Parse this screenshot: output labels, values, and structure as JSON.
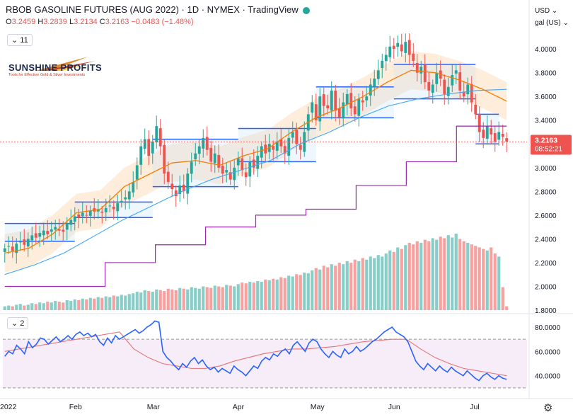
{
  "header": {
    "symbol": "RBOB GASOLINE FUTURES (AUG 2022)",
    "interval": "1D",
    "exchange": "NYMEX",
    "source": "TradingView",
    "sep": " · "
  },
  "ohlc": {
    "o_label": "O",
    "o": "3.2459",
    "h_label": "H",
    "h": "3.2839",
    "l_label": "L",
    "l": "3.2134",
    "c_label": "C",
    "c": "3.2163",
    "chg": "−0.0483 (−1.48%)"
  },
  "indicator_count_main": "11",
  "indicator_count_rsi": "2",
  "currency": "USD",
  "unit": "gal (US)",
  "logo": {
    "name": "SUNSHINE PROFITS",
    "tagline": "Tools for Effective Gold & Silver Investments"
  },
  "price_tag": {
    "value": "3.2163",
    "countdown": "08:52:21",
    "color": "#ef5350"
  },
  "colors": {
    "up": "#26a69a",
    "down": "#ef5350",
    "ma_fast": "#f57c00",
    "ma_slow": "#42a5f5",
    "vwap": "#9c27b0",
    "rsi": "#2962ff",
    "rsi_ma": "#e57373"
  },
  "chart_data": [
    {
      "type": "candlestick",
      "title": "",
      "y_axis_ticks": [
        "4.0000",
        "3.8000",
        "3.6000",
        "3.4000",
        "3.2000",
        "3.0000",
        "2.8000",
        "2.6000",
        "2.4000",
        "2.2000",
        "2.0000",
        "1.8000"
      ],
      "ylim": [
        1.8,
        4.15
      ],
      "x_axis_ticks": [
        "2022",
        "Feb",
        "Mar",
        "Apr",
        "May",
        "Jun",
        "Jul"
      ],
      "x_tick_index": [
        0,
        18,
        38,
        60,
        80,
        100,
        121
      ],
      "close": [
        2.32,
        2.34,
        2.3,
        2.36,
        2.38,
        2.35,
        2.4,
        2.43,
        2.41,
        2.45,
        2.47,
        2.44,
        2.48,
        2.5,
        2.47,
        2.46,
        2.53,
        2.56,
        2.59,
        2.58,
        2.62,
        2.6,
        2.64,
        2.63,
        2.65,
        2.62,
        2.66,
        2.68,
        2.65,
        2.7,
        2.72,
        2.75,
        2.8,
        2.88,
        3.02,
        3.18,
        3.24,
        3.1,
        3.22,
        3.35,
        3.18,
        2.95,
        2.88,
        2.82,
        2.76,
        2.85,
        2.8,
        2.95,
        3.05,
        3.12,
        3.18,
        3.25,
        3.15,
        3.05,
        3.12,
        3.0,
        2.95,
        2.98,
        2.9,
        3.0,
        3.08,
        2.98,
        2.92,
        3.05,
        3.0,
        3.1,
        3.18,
        3.12,
        3.2,
        3.15,
        3.22,
        3.18,
        3.12,
        3.25,
        3.3,
        3.2,
        3.15,
        3.3,
        3.45,
        3.55,
        3.4,
        3.6,
        3.52,
        3.5,
        3.65,
        3.48,
        3.42,
        3.55,
        3.62,
        3.5,
        3.45,
        3.58,
        3.55,
        3.6,
        3.7,
        3.75,
        3.82,
        3.9,
        3.95,
        4.02,
        4.0,
        4.05,
        3.98,
        4.06,
        3.95,
        3.9,
        3.8,
        3.85,
        3.72,
        3.65,
        3.7,
        3.8,
        3.75,
        3.62,
        3.68,
        3.78,
        3.82,
        3.65,
        3.6,
        3.7,
        3.55,
        3.45,
        3.3,
        3.25,
        3.35,
        3.28,
        3.22,
        3.3,
        3.26,
        3.22
      ],
      "ma_fast": [
        2.28,
        2.32,
        2.44,
        2.62,
        2.65,
        2.84,
        2.94,
        3.04,
        3.06,
        3.02,
        3.1,
        3.16,
        3.3,
        3.42,
        3.5,
        3.6,
        3.72,
        3.82,
        3.8,
        3.74,
        3.66,
        3.56
      ],
      "ma_slow": [
        2.1,
        2.18,
        2.28,
        2.42,
        2.56,
        2.68,
        2.8,
        2.9,
        2.98,
        3.06,
        3.2,
        3.3,
        3.42,
        3.52,
        3.58,
        3.62,
        3.65,
        3.66
      ],
      "vwap": [
        2.0,
        2.0,
        2.2,
        2.35,
        2.5,
        2.6,
        2.65,
        2.85,
        3.05,
        3.35,
        3.35
      ],
      "volume": [
        0.05,
        0.06,
        0.05,
        0.07,
        0.08,
        0.06,
        0.07,
        0.09,
        0.08,
        0.1,
        0.09,
        0.11,
        0.1,
        0.12,
        0.11,
        0.1,
        0.13,
        0.12,
        0.14,
        0.13,
        0.15,
        0.14,
        0.16,
        0.15,
        0.17,
        0.16,
        0.18,
        0.17,
        0.19,
        0.18,
        0.2,
        0.19,
        0.21,
        0.22,
        0.24,
        0.23,
        0.26,
        0.25,
        0.24,
        0.27,
        0.26,
        0.25,
        0.28,
        0.27,
        0.26,
        0.29,
        0.28,
        0.27,
        0.3,
        0.29,
        0.28,
        0.31,
        0.3,
        0.29,
        0.32,
        0.31,
        0.3,
        0.33,
        0.32,
        0.31,
        0.34,
        0.36,
        0.35,
        0.37,
        0.36,
        0.38,
        0.37,
        0.4,
        0.39,
        0.41,
        0.4,
        0.43,
        0.42,
        0.45,
        0.44,
        0.47,
        0.46,
        0.49,
        0.48,
        0.52,
        0.55,
        0.53,
        0.58,
        0.56,
        0.6,
        0.58,
        0.62,
        0.6,
        0.64,
        0.62,
        0.66,
        0.64,
        0.68,
        0.66,
        0.7,
        0.68,
        0.72,
        0.7,
        0.74,
        0.78,
        0.76,
        0.82,
        0.8,
        0.85,
        0.88,
        0.86,
        0.9,
        0.88,
        0.92,
        0.9,
        0.94,
        0.92,
        0.96,
        0.94,
        0.98,
        0.95,
        1.0,
        0.93,
        0.9,
        0.88,
        0.86,
        0.84,
        0.82,
        0.8,
        0.78,
        0.82,
        0.74,
        0.7,
        0.3,
        0.05
      ]
    },
    {
      "type": "line",
      "title": "",
      "y_axis_ticks": [
        "80.0000",
        "60.0000",
        "40.0000"
      ],
      "ylim": [
        27,
        87
      ],
      "bands": [
        70,
        30
      ],
      "rsi": [
        56,
        60,
        58,
        65,
        62,
        58,
        68,
        63,
        66,
        71,
        70,
        66,
        69,
        72,
        68,
        70,
        73,
        70,
        74,
        76,
        73,
        75,
        72,
        74,
        68,
        65,
        71,
        67,
        73,
        70,
        72,
        74,
        76,
        78,
        75,
        77,
        80,
        82,
        85,
        84,
        60,
        55,
        52,
        48,
        45,
        50,
        47,
        52,
        55,
        50,
        53,
        48,
        45,
        47,
        43,
        46,
        44,
        42,
        48,
        45,
        43,
        40,
        44,
        48,
        46,
        52,
        55,
        53,
        58,
        56,
        60,
        62,
        58,
        65,
        68,
        64,
        60,
        67,
        70,
        68,
        62,
        58,
        55,
        60,
        57,
        55,
        62,
        58,
        60,
        64,
        60,
        62,
        65,
        68,
        70,
        73,
        76,
        78,
        80,
        76,
        74,
        72,
        68,
        60,
        52,
        48,
        45,
        50,
        47,
        44,
        48,
        45,
        43,
        47,
        44,
        42,
        40,
        44,
        41,
        38,
        36,
        40,
        42,
        39,
        37,
        40,
        38,
        37
      ],
      "rsi_ma": [
        60,
        62,
        64,
        66,
        68,
        70,
        72,
        74,
        76,
        62,
        55,
        50,
        48,
        46,
        46,
        48,
        52,
        55,
        58,
        60,
        62,
        62,
        63,
        64,
        66,
        68,
        69,
        70,
        70,
        62,
        55,
        50,
        46,
        44,
        42,
        40
      ]
    }
  ]
}
